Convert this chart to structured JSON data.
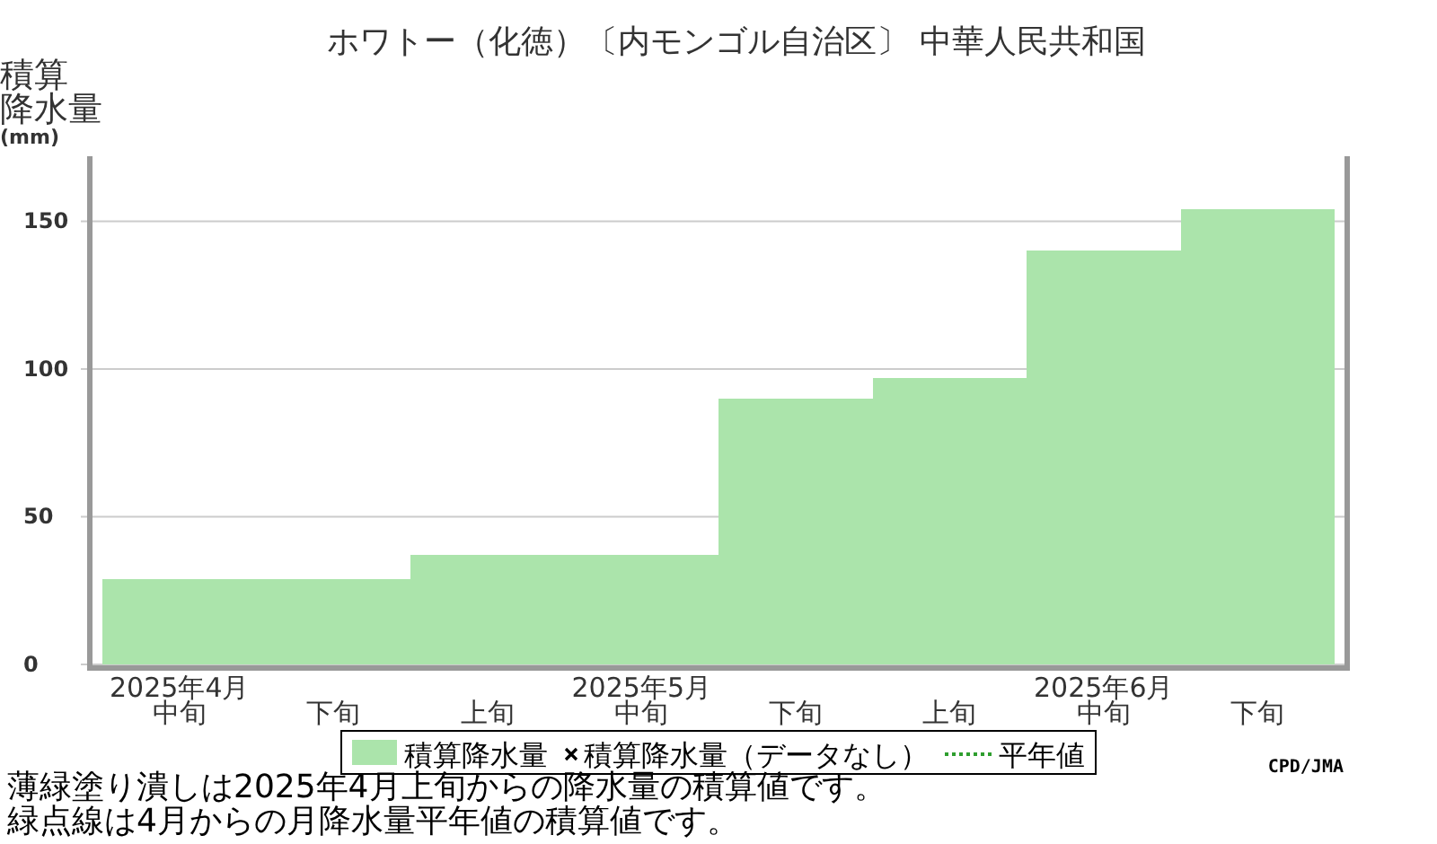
{
  "chart_data": {
    "type": "bar",
    "title": "ホワトー（化徳）〔内モンゴル自治区〕 中華人民共和国",
    "ylabel": "積算降水量(mm)",
    "categories": [
      "2025年4月中旬",
      "下旬",
      "上旬",
      "2025年5月中旬",
      "下旬",
      "上旬",
      "2025年6月中旬",
      "下旬"
    ],
    "series": [
      {
        "name": "積算降水量",
        "color": "#abe4ab",
        "values": [
          29,
          29,
          37,
          37,
          90,
          97,
          140,
          154
        ]
      },
      {
        "name": "積算降水量（データなし）",
        "type": "scatter",
        "marker": "cross",
        "color": "#000000",
        "values": [
          null,
          null,
          null,
          null,
          null,
          null,
          null,
          null
        ]
      },
      {
        "name": "平年値",
        "type": "line",
        "line_style": "dotted",
        "color": "#2e9e2e",
        "values": [
          null,
          null,
          null,
          null,
          null,
          null,
          null,
          null
        ]
      }
    ],
    "ylim": [
      0,
      172
    ],
    "yticks": [
      0,
      50,
      100,
      150
    ],
    "grid": "y",
    "legend": "bottom",
    "annotations": [
      "CPD/JMA",
      "薄緑塗り潰しは2025年4月上旬からの降水量の積算値です。",
      "緑点線は4月からの月降水量平年値の積算値です。"
    ]
  }
}
